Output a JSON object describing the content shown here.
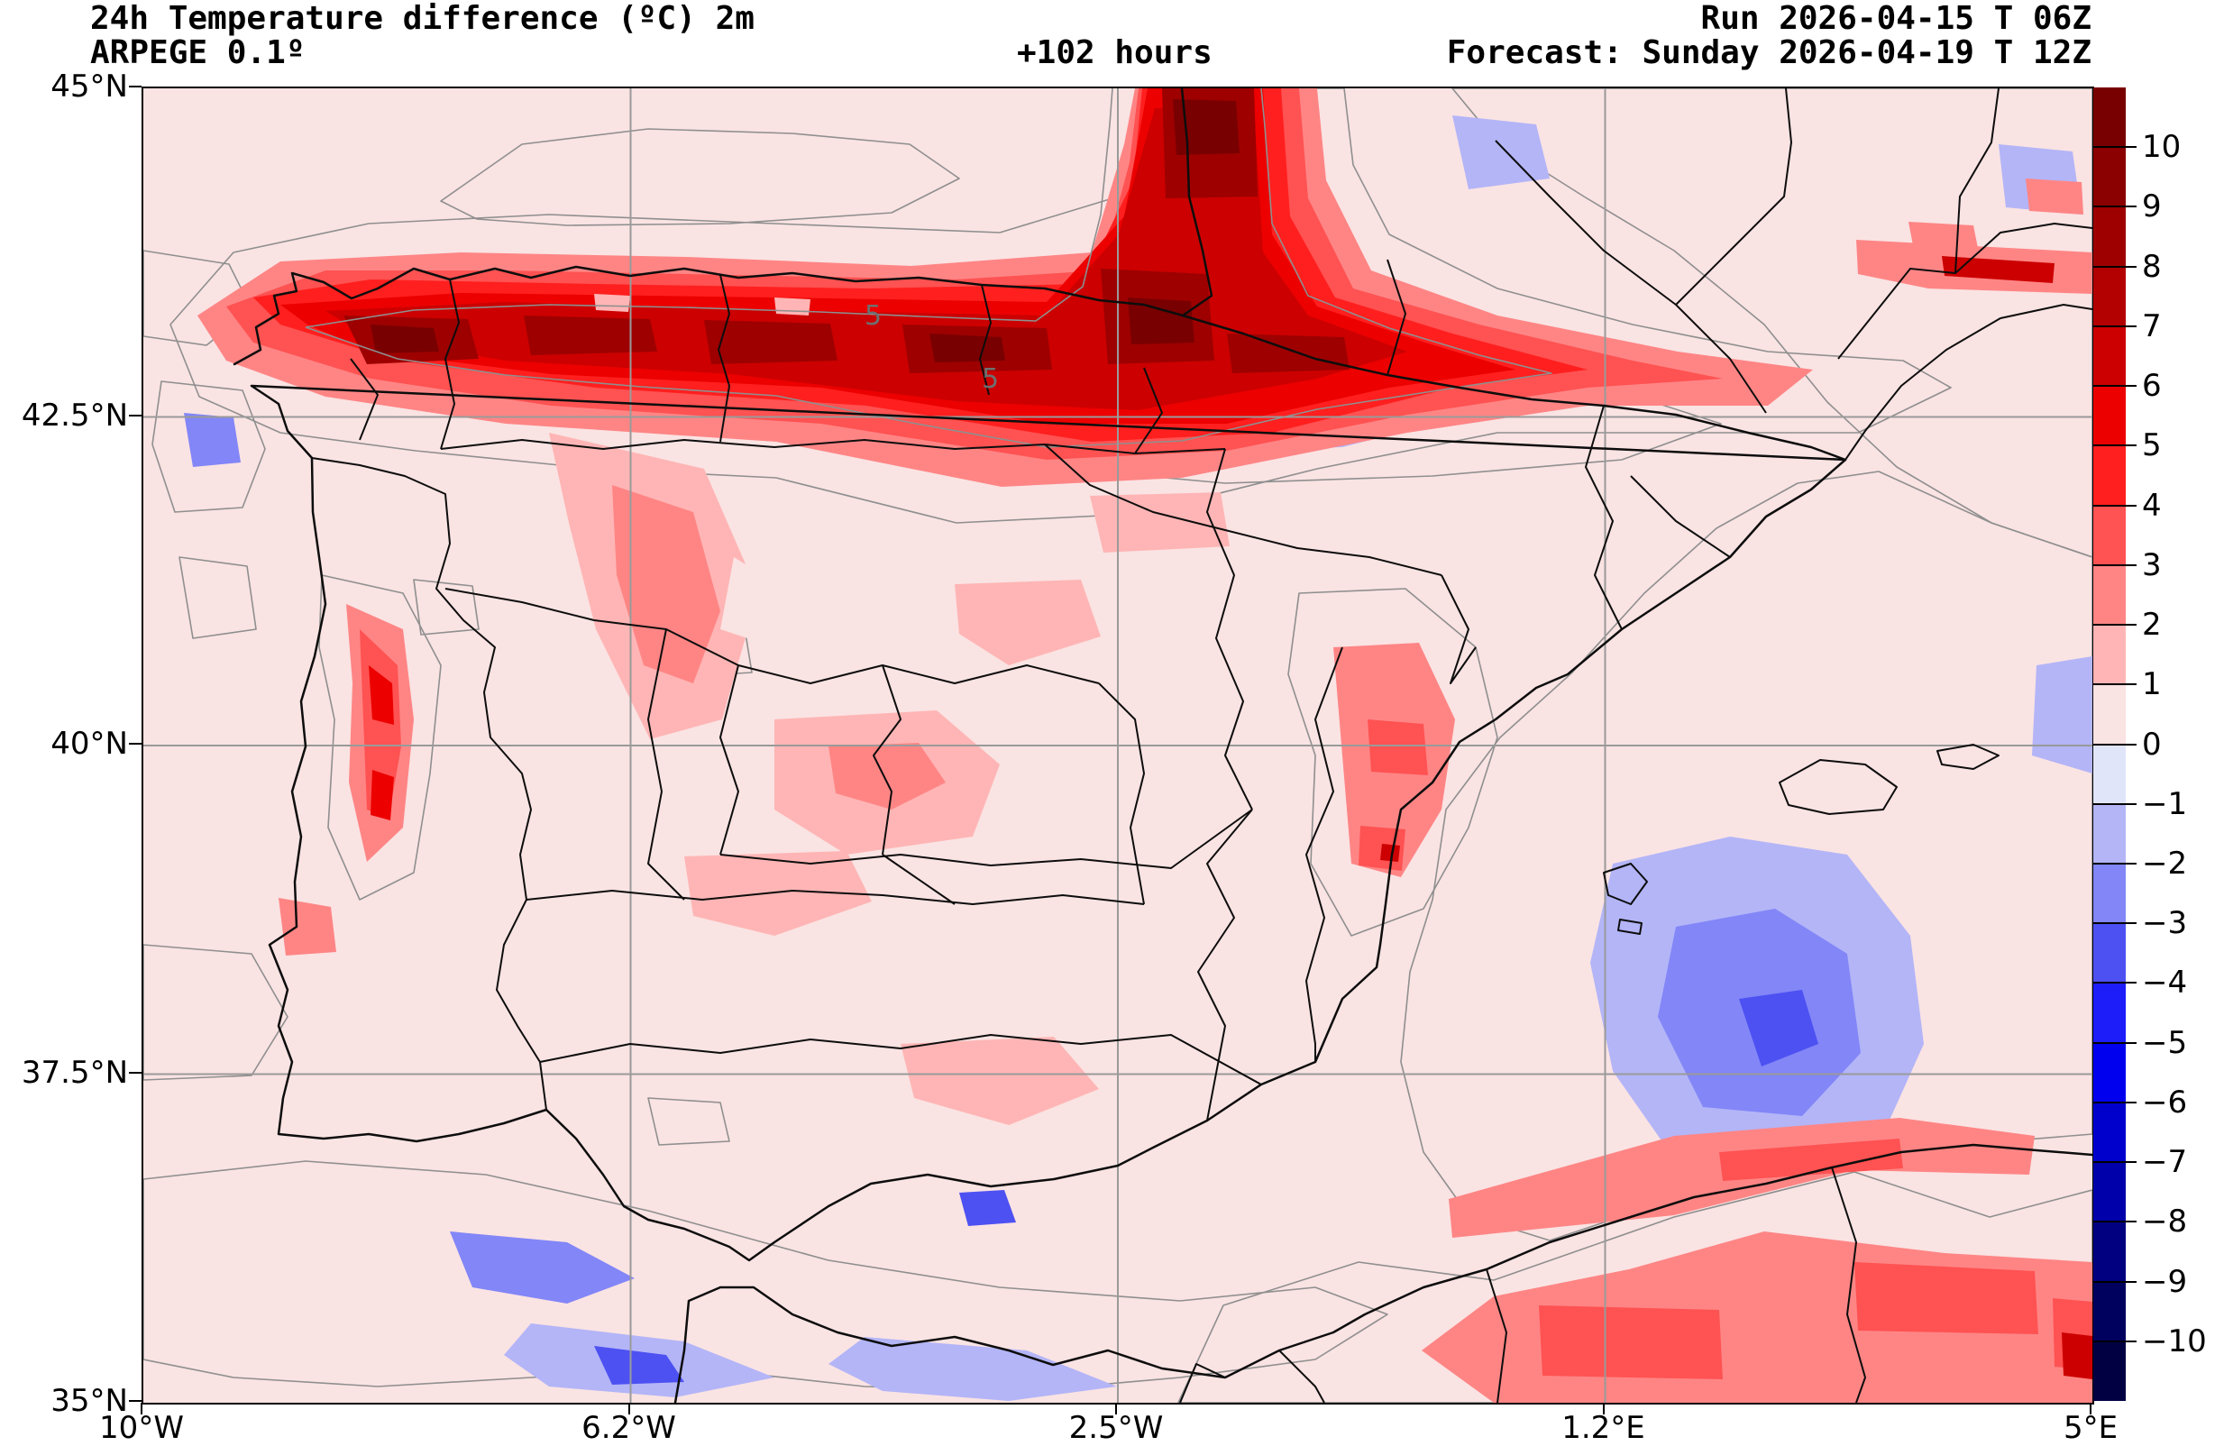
{
  "header": {
    "title_line1": "24h Temperature difference (ºC) 2m",
    "title_line2": "ARPEGE 0.1º",
    "lead_time": "+102 hours",
    "run": "Run 2026-04-15 T 06Z",
    "forecast": "Forecast: Sunday 2026-04-19 T 12Z"
  },
  "axes": {
    "y_tick_labels": [
      "45°N",
      "42.5°N",
      "40°N",
      "37.5°N",
      "35°N"
    ],
    "x_tick_labels": [
      "10°W",
      "6.2°W",
      "2.5°W",
      "1.2°E",
      "5°E"
    ]
  },
  "map": {
    "contour_label": "5",
    "base_fill_color": "#fae3e3",
    "boundary_color": "#0d0d0d",
    "gridline_color": "#9a9a9a"
  },
  "colorbar": {
    "units": "ºC",
    "tick_labels": [
      "10",
      "9",
      "8",
      "7",
      "6",
      "5",
      "4",
      "3",
      "2",
      "1",
      "0",
      "−1",
      "−2",
      "−3",
      "−4",
      "−5",
      "−6",
      "−7",
      "−8",
      "−9",
      "−10"
    ],
    "band_colors": [
      "#790000",
      "#8b0000",
      "#9e0000",
      "#b30000",
      "#cc0000",
      "#ec0000",
      "#ff1f1f",
      "#ff5252",
      "#ff8585",
      "#ffb5b5",
      "#fae3e3",
      "#e1e5fa",
      "#b3b5f7",
      "#8286f7",
      "#4d51f2",
      "#1d1dfa",
      "#0000ee",
      "#0000cd",
      "#0000ab",
      "#000080",
      "#00005f",
      "#000042"
    ]
  }
}
